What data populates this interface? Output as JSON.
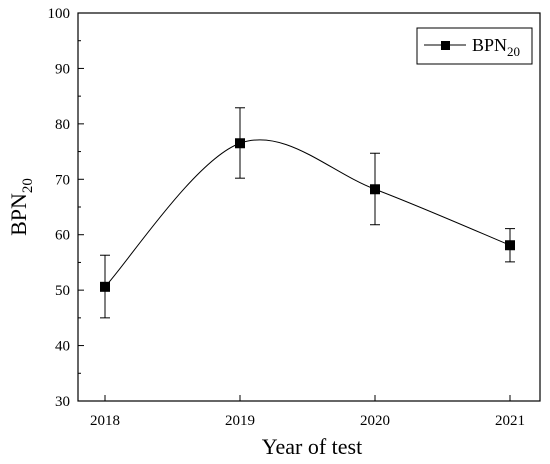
{
  "chart_data": {
    "type": "line",
    "categories": [
      "2018",
      "2019",
      "2020",
      "2021"
    ],
    "series": [
      {
        "name_main": "BPN",
        "name_sub": "20",
        "values": [
          50.6,
          76.5,
          68.2,
          58.1
        ],
        "error_low": [
          45.0,
          70.2,
          61.8,
          55.1
        ],
        "error_high": [
          56.3,
          82.9,
          74.7,
          61.1
        ],
        "color": "#000000",
        "marker": "square",
        "smooth": true
      }
    ],
    "xlabel": "Year of test",
    "ylabel_main": "BPN",
    "ylabel_sub": "20",
    "ylim": [
      30,
      100
    ],
    "yticks": [
      "30",
      "40",
      "50",
      "60",
      "70",
      "80",
      "90",
      "100"
    ],
    "grid": false,
    "legend_position": "top-right"
  }
}
